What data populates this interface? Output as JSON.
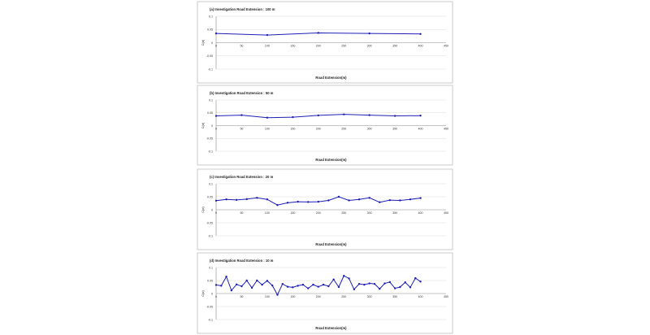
{
  "chart_data": [
    {
      "type": "line",
      "title": "(a) Investigation Road Extension : 100 m",
      "xlabel": "Road Extension(m)",
      "ylabel": "C(α)",
      "xlim": [
        0,
        450
      ],
      "ylim": [
        -0.1,
        0.1
      ],
      "x_ticks": [
        0,
        50,
        100,
        150,
        200,
        250,
        300,
        350,
        400,
        450
      ],
      "y_ticks": [
        "0.1",
        "0.05",
        "0",
        "-0.05",
        "-0.1"
      ],
      "series": [
        {
          "x": [
            0,
            100,
            200,
            300,
            400
          ],
          "values": [
            0.035,
            0.029,
            0.037,
            0.035,
            0.033
          ]
        }
      ],
      "grid": "horizontal"
    },
    {
      "type": "line",
      "title": "(b) Investigation Road Extension : 50 m",
      "xlabel": "Road Extension(m)",
      "ylabel": "C(α)",
      "xlim": [
        0,
        450
      ],
      "ylim": [
        -0.1,
        0.1
      ],
      "x_ticks": [
        0,
        50,
        100,
        150,
        200,
        250,
        300,
        350,
        400,
        450
      ],
      "y_ticks": [
        "0.1",
        "0.05",
        "0",
        "-0.05",
        "-0.1"
      ],
      "series": [
        {
          "x": [
            0,
            50,
            100,
            150,
            200,
            250,
            300,
            350,
            400
          ],
          "values": [
            0.038,
            0.041,
            0.031,
            0.033,
            0.04,
            0.044,
            0.041,
            0.038,
            0.039
          ]
        }
      ],
      "grid": "horizontal"
    },
    {
      "type": "line",
      "title": "(c) Investigation Road Extension : 20 m",
      "xlabel": "Road Extension(m)",
      "ylabel": "C(α)",
      "xlim": [
        0,
        450
      ],
      "ylim": [
        -0.1,
        0.1
      ],
      "x_ticks": [
        0,
        50,
        100,
        150,
        200,
        250,
        300,
        350,
        400,
        450
      ],
      "y_ticks": [
        "0.1",
        "0.05",
        "0",
        "-0.05",
        "-0.1"
      ],
      "series": [
        {
          "x": [
            0,
            20,
            40,
            60,
            80,
            100,
            120,
            140,
            160,
            180,
            200,
            220,
            240,
            260,
            280,
            300,
            320,
            340,
            360,
            380,
            400
          ],
          "values": [
            0.035,
            0.04,
            0.038,
            0.041,
            0.046,
            0.04,
            0.018,
            0.027,
            0.031,
            0.03,
            0.031,
            0.036,
            0.05,
            0.036,
            0.04,
            0.046,
            0.029,
            0.037,
            0.036,
            0.04,
            0.045
          ]
        }
      ],
      "grid": "horizontal"
    },
    {
      "type": "line",
      "title": "(d) Investigation Road Extension : 10 m",
      "xlabel": "Road Extension(m)",
      "ylabel": "C(α)",
      "xlim": [
        0,
        450
      ],
      "ylim": [
        -0.1,
        0.1
      ],
      "x_ticks": [
        0,
        50,
        100,
        150,
        200,
        250,
        300,
        350,
        400,
        450
      ],
      "y_ticks": [
        "0.1",
        "0.05",
        "0",
        "-0.05",
        "-0.1"
      ],
      "series": [
        {
          "x": [
            0,
            10,
            20,
            30,
            40,
            50,
            60,
            70,
            80,
            90,
            100,
            110,
            120,
            130,
            140,
            150,
            160,
            170,
            180,
            190,
            200,
            210,
            220,
            230,
            240,
            250,
            260,
            270,
            280,
            290,
            300,
            310,
            320,
            330,
            340,
            350,
            360,
            370,
            380,
            390,
            400
          ],
          "values": [
            0.033,
            0.03,
            0.065,
            0.012,
            0.035,
            0.028,
            0.05,
            0.022,
            0.05,
            0.034,
            0.049,
            0.031,
            -0.005,
            0.037,
            0.026,
            0.024,
            0.03,
            0.034,
            0.02,
            0.034,
            0.026,
            0.034,
            0.028,
            0.054,
            0.025,
            0.068,
            0.058,
            0.016,
            0.037,
            0.034,
            0.039,
            0.037,
            0.018,
            0.039,
            0.044,
            0.02,
            0.025,
            0.043,
            0.024,
            0.059,
            0.046
          ]
        }
      ],
      "grid": "horizontal"
    }
  ]
}
